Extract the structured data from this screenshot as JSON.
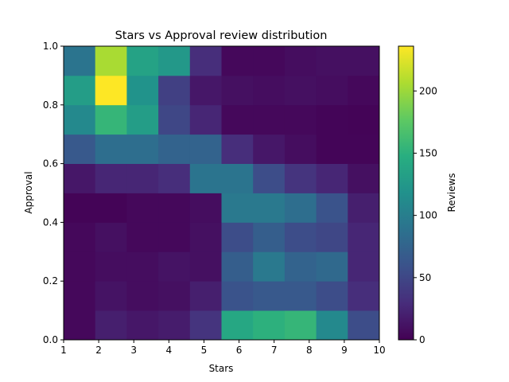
{
  "chart_data": {
    "type": "heatmap",
    "title": "Stars vs Approval review distribution",
    "xlabel": "Stars",
    "ylabel": "Approval",
    "colorbar_label": "Reviews",
    "colormap": "viridis",
    "xlim": [
      1,
      10
    ],
    "ylim": [
      0.0,
      1.0
    ],
    "x_bin_edges": [
      1,
      1.9,
      2.8,
      3.7,
      4.6,
      5.5,
      6.4,
      7.3,
      8.2,
      9.1,
      10
    ],
    "y_bin_edges": [
      0.0,
      0.1,
      0.2,
      0.3,
      0.4,
      0.5,
      0.6,
      0.7,
      0.8,
      0.9,
      1.0
    ],
    "x_ticks": [
      "1",
      "2",
      "3",
      "4",
      "5",
      "6",
      "7",
      "8",
      "9",
      "10"
    ],
    "y_ticks": [
      "0.0",
      "0.2",
      "0.4",
      "0.6",
      "0.8",
      "1.0"
    ],
    "colorbar_ticks": [
      "0",
      "50",
      "100",
      "150",
      "200"
    ],
    "vmin": 0,
    "vmax": 236,
    "values_rows_bottom_to_top": [
      [
        5,
        20,
        15,
        18,
        35,
        140,
        150,
        155,
        110,
        55
      ],
      [
        5,
        12,
        8,
        10,
        20,
        60,
        65,
        65,
        55,
        30
      ],
      [
        5,
        8,
        8,
        12,
        10,
        70,
        95,
        75,
        80,
        25
      ],
      [
        5,
        10,
        5,
        5,
        10,
        55,
        70,
        55,
        50,
        25
      ],
      [
        2,
        2,
        5,
        5,
        8,
        95,
        95,
        85,
        60,
        20
      ],
      [
        15,
        25,
        25,
        30,
        90,
        90,
        55,
        35,
        25,
        10
      ],
      [
        65,
        85,
        85,
        75,
        75,
        30,
        15,
        8,
        3,
        3
      ],
      [
        110,
        155,
        130,
        50,
        25,
        5,
        5,
        5,
        3,
        2
      ],
      [
        130,
        236,
        120,
        45,
        15,
        10,
        8,
        10,
        8,
        5
      ],
      [
        90,
        205,
        135,
        125,
        30,
        5,
        5,
        8,
        10,
        10
      ]
    ]
  }
}
